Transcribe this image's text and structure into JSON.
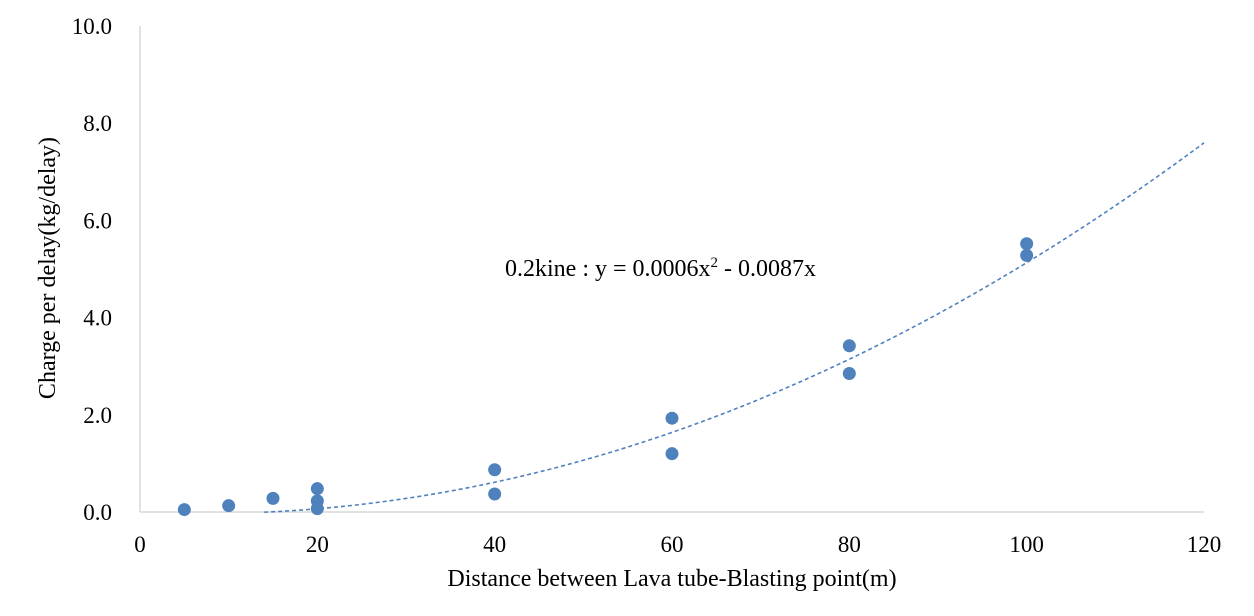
{
  "chart_data": {
    "type": "scatter",
    "title": "",
    "xlabel": "Distance between Lava tube-Blasting point(m)",
    "ylabel": "Charge per delay(kg/delay)",
    "xlim": [
      0,
      120
    ],
    "ylim": [
      0,
      10
    ],
    "x_ticks": [
      "0",
      "20",
      "40",
      "60",
      "80",
      "100",
      "120"
    ],
    "y_ticks": [
      "0.0",
      "2.0",
      "4.0",
      "6.0",
      "8.0",
      "10.0"
    ],
    "grid": false,
    "series": [
      {
        "color": "#4f81bd",
        "points": [
          {
            "x": 5,
            "y": 0.05
          },
          {
            "x": 10,
            "y": 0.13
          },
          {
            "x": 15,
            "y": 0.28
          },
          {
            "x": 20,
            "y": 0.48
          },
          {
            "x": 20,
            "y": 0.23
          },
          {
            "x": 20,
            "y": 0.07
          },
          {
            "x": 40,
            "y": 0.87
          },
          {
            "x": 40,
            "y": 0.37
          },
          {
            "x": 60,
            "y": 1.93
          },
          {
            "x": 60,
            "y": 1.2
          },
          {
            "x": 80,
            "y": 3.42
          },
          {
            "x": 80,
            "y": 2.85
          },
          {
            "x": 100,
            "y": 5.52
          },
          {
            "x": 100,
            "y": 5.28
          }
        ]
      }
    ],
    "trendline": {
      "type": "polynomial",
      "coefficients": {
        "a": 0.0006,
        "b": -0.0087,
        "c": 0
      },
      "x_start": 14,
      "x_end": 120,
      "style": "dashed",
      "color": "#4f81bd",
      "label_prefix": "0.2kine : y = 0.0006x",
      "label_exp": "2",
      "label_suffix": " - 0.0087x"
    }
  }
}
